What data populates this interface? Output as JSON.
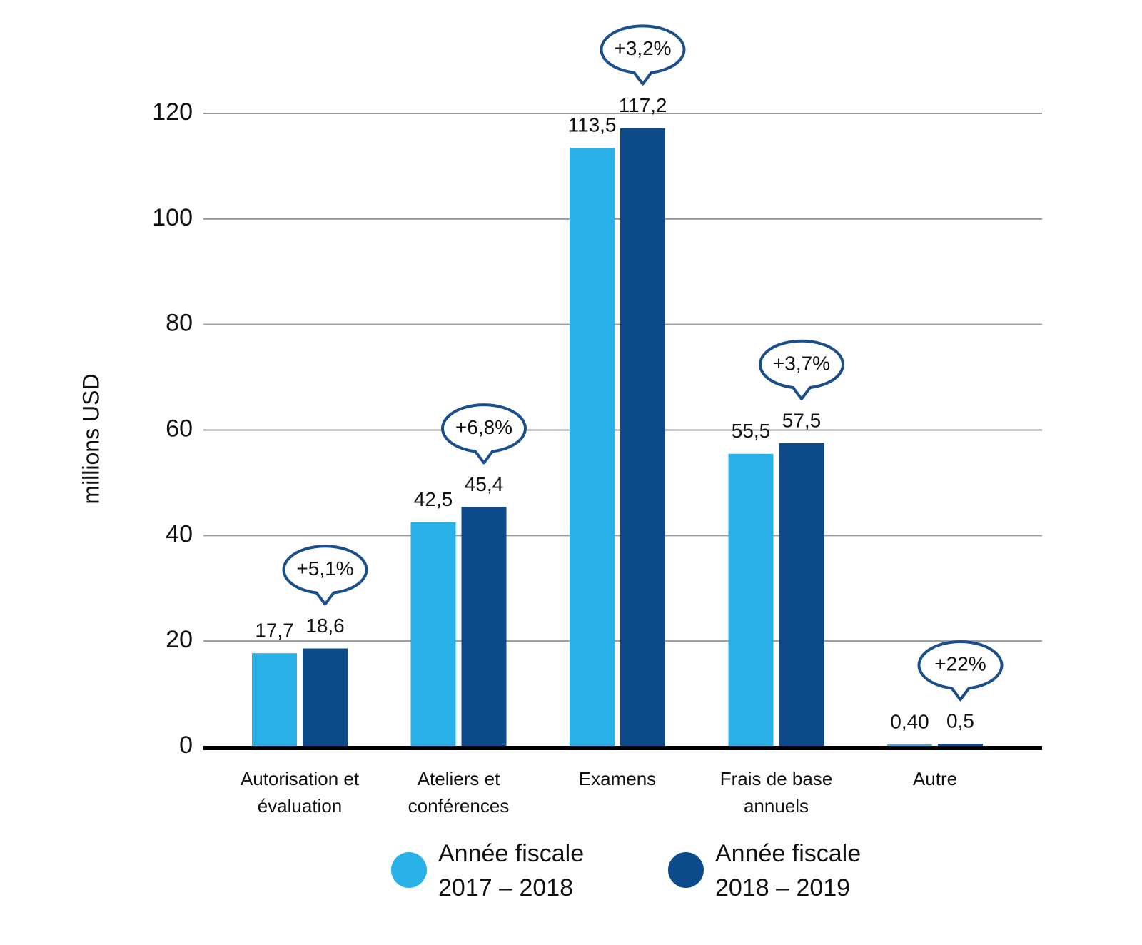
{
  "chart_data": {
    "type": "bar",
    "y_label": "millions USD",
    "categories": [
      "Autorisation et évaluation",
      "Ateliers et conférences",
      "Examens",
      "Frais de base annuels",
      "Autre"
    ],
    "series": [
      {
        "name": "Année fiscale 2017 – 2018",
        "color": "#29b0e6",
        "values": [
          17.7,
          42.5,
          113.5,
          55.5,
          0.4
        ],
        "value_labels": [
          "17,7",
          "42,5",
          "113,5",
          "55,5",
          "0,40"
        ]
      },
      {
        "name": "Année fiscale 2018 – 2019",
        "color": "#0c4a8a",
        "values": [
          18.6,
          45.4,
          117.2,
          57.5,
          0.5
        ],
        "value_labels": [
          "18,6",
          "45,4",
          "117,2",
          "57,5",
          "0,5"
        ]
      }
    ],
    "annotations": [
      "+5,1%",
      "+6,8%",
      "+3,2%",
      "+3,7%",
      "+22%"
    ],
    "ylim": [
      0,
      120
    ],
    "yticks": [
      0,
      20,
      40,
      60,
      80,
      100,
      120
    ],
    "grid": true
  }
}
